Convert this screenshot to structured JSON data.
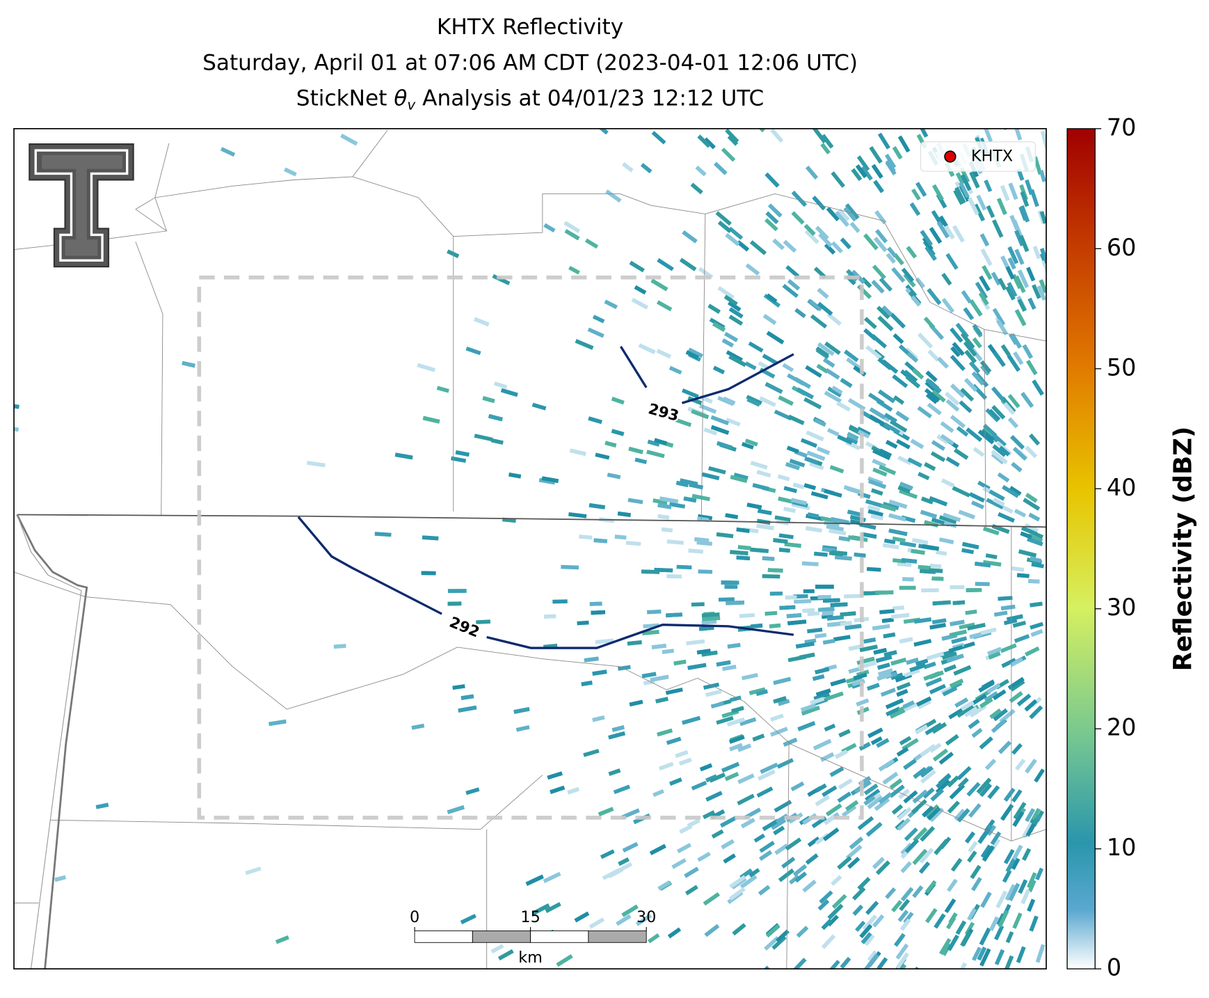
{
  "title": {
    "line1": "KHTX Reflectivity",
    "line2": "Saturday, April 01 at 07:06 AM CDT (2023-04-01 12:06 UTC)",
    "line3": {
      "prefix": "StickNet ",
      "symbol": "θ",
      "subscript": "v",
      "suffix": " Analysis at 04/01/23 12:12 UTC"
    }
  },
  "legend": {
    "label": "KHTX",
    "color": "#e00000"
  },
  "contours": [
    {
      "label": "293",
      "color": "#0d2a6e"
    },
    {
      "label": "292",
      "color": "#0d2a6e"
    }
  ],
  "scalebar": {
    "ticks": [
      0,
      15,
      30
    ],
    "unit": "km"
  },
  "colorbar": {
    "label": "Reflectivity (dBZ)",
    "lim": [
      0,
      70
    ],
    "ticks": [
      0,
      10,
      20,
      30,
      40,
      50,
      60,
      70
    ]
  }
}
